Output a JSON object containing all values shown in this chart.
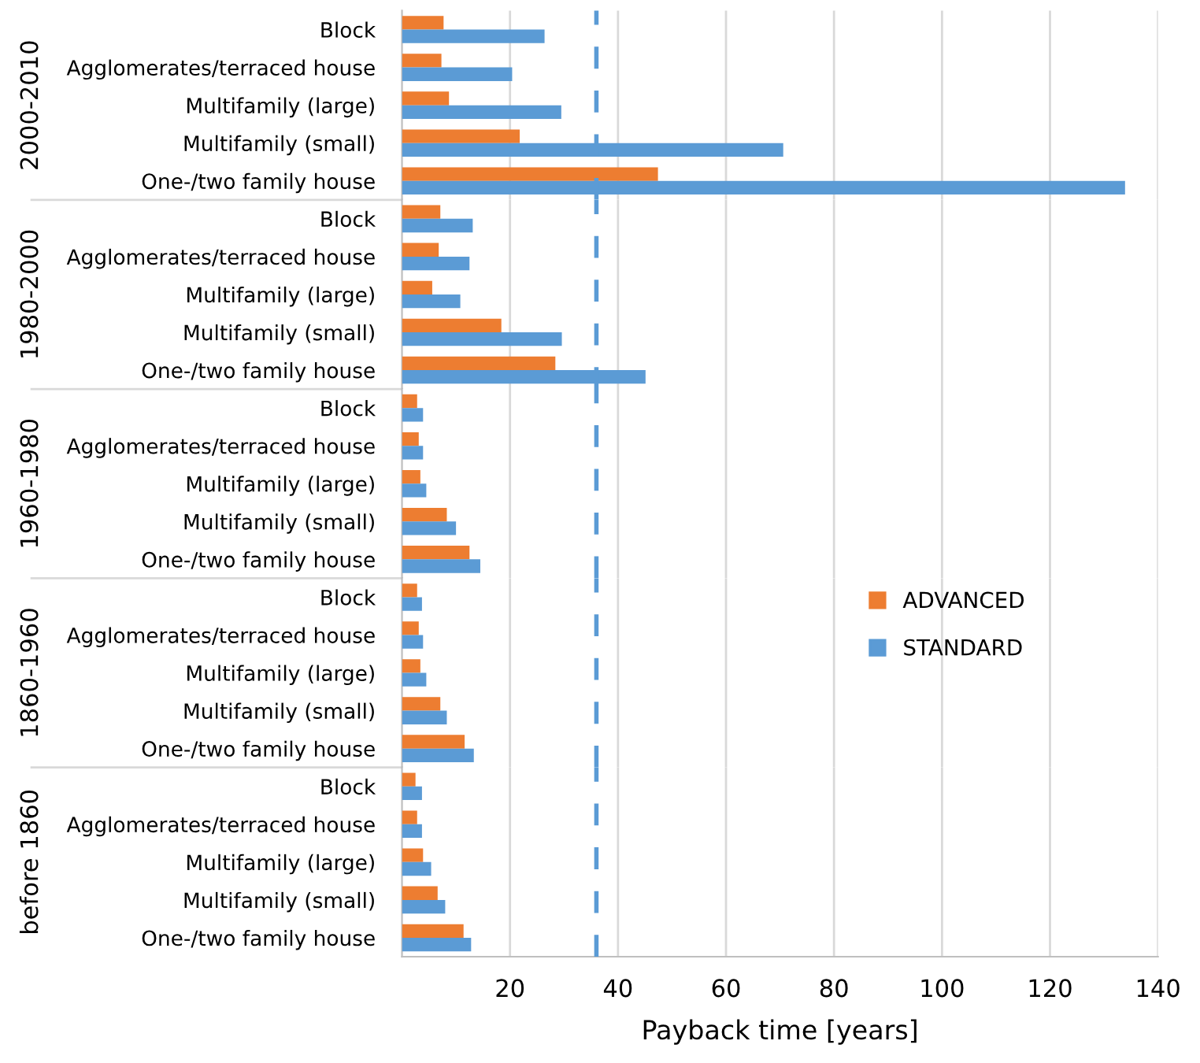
{
  "chart_data": [
    {
      "type": "bar",
      "orientation": "horizontal",
      "ylabel": "2000-2010",
      "categories": [
        "Block",
        "Agglomerates/terraced house",
        "Multifamily (large)",
        "Multifamily (small)",
        "One-/two family house"
      ],
      "series": [
        {
          "color": "#ed7d31",
          "values": [
            7.7,
            7.3,
            8.7,
            21.8,
            47.4
          ]
        },
        {
          "color": "#5b9bd5",
          "values": [
            26.4,
            20.4,
            29.5,
            70.6,
            133.9
          ]
        }
      ],
      "xlim": [
        0,
        140
      ],
      "xticks": [
        20,
        40,
        60,
        80,
        100,
        120,
        140
      ],
      "grid": "x",
      "tick_labels": "y",
      "ref_lines": [
        {
          "axis": "x",
          "value": 36,
          "color": "#5b9bd5",
          "line_style": "dashed"
        }
      ]
    },
    {
      "type": "bar",
      "orientation": "horizontal",
      "ylabel": "1980-2000",
      "categories": [
        "Block",
        "Agglomerates/terraced house",
        "Multifamily (large)",
        "Multifamily (small)",
        "One-/two family house"
      ],
      "series": [
        {
          "color": "#ed7d31",
          "values": [
            7.1,
            6.8,
            5.6,
            18.4,
            28.4
          ]
        },
        {
          "color": "#5b9bd5",
          "values": [
            13.1,
            12.5,
            10.8,
            29.6,
            45.1
          ]
        }
      ],
      "xlim": [
        0,
        140
      ],
      "xticks": [
        20,
        40,
        60,
        80,
        100,
        120,
        140
      ],
      "grid": "x",
      "tick_labels": "y",
      "ref_lines": [
        {
          "axis": "x",
          "value": 36,
          "color": "#5b9bd5",
          "line_style": "dashed"
        }
      ]
    },
    {
      "type": "bar",
      "orientation": "horizontal",
      "ylabel": "1960-1980",
      "categories": [
        "Block",
        "Agglomerates/terraced house",
        "Multifamily (large)",
        "Multifamily (small)",
        "One-/two family house"
      ],
      "series": [
        {
          "color": "#ed7d31",
          "values": [
            2.8,
            3.1,
            3.4,
            8.3,
            12.5
          ]
        },
        {
          "color": "#5b9bd5",
          "values": [
            3.9,
            3.9,
            4.5,
            10.0,
            14.5
          ]
        }
      ],
      "xlim": [
        0,
        140
      ],
      "xticks": [
        20,
        40,
        60,
        80,
        100,
        120,
        140
      ],
      "grid": "x",
      "tick_labels": "y",
      "ref_lines": [
        {
          "axis": "x",
          "value": 36,
          "color": "#5b9bd5",
          "line_style": "dashed"
        }
      ]
    },
    {
      "type": "bar",
      "orientation": "horizontal",
      "ylabel": "1860-1960",
      "categories": [
        "Block",
        "Agglomerates/terraced house",
        "Multifamily (large)",
        "Multifamily (small)",
        "One-/two family house"
      ],
      "series": [
        {
          "name": "ADVANCED",
          "color": "#ed7d31",
          "values": [
            2.8,
            3.1,
            3.4,
            7.1,
            11.6
          ]
        },
        {
          "name": "STANDARD",
          "color": "#5b9bd5",
          "values": [
            3.7,
            3.9,
            4.5,
            8.3,
            13.3
          ]
        }
      ],
      "xlim": [
        0,
        140
      ],
      "xticks": [
        20,
        40,
        60,
        80,
        100,
        120,
        140
      ],
      "grid": "x",
      "tick_labels": "y",
      "legend": "right",
      "ref_lines": [
        {
          "axis": "x",
          "value": 36,
          "color": "#5b9bd5",
          "line_style": "dashed"
        }
      ]
    },
    {
      "type": "bar",
      "orientation": "horizontal",
      "ylabel": "before 1860",
      "xlabel": "Payback time [years]",
      "categories": [
        "Block",
        "Agglomerates/terraced house",
        "Multifamily (large)",
        "Multifamily (small)",
        "One-/two family house"
      ],
      "series": [
        {
          "color": "#ed7d31",
          "values": [
            2.5,
            2.8,
            3.9,
            6.6,
            11.4
          ]
        },
        {
          "color": "#5b9bd5",
          "values": [
            3.7,
            3.7,
            5.4,
            8.0,
            12.8
          ]
        }
      ],
      "xlim": [
        0,
        140
      ],
      "xticks": [
        20,
        40,
        60,
        80,
        100,
        120,
        140
      ],
      "grid": "x",
      "ref_lines": [
        {
          "axis": "x",
          "value": 36,
          "color": "#5b9bd5",
          "line_style": "dashed"
        }
      ]
    }
  ]
}
